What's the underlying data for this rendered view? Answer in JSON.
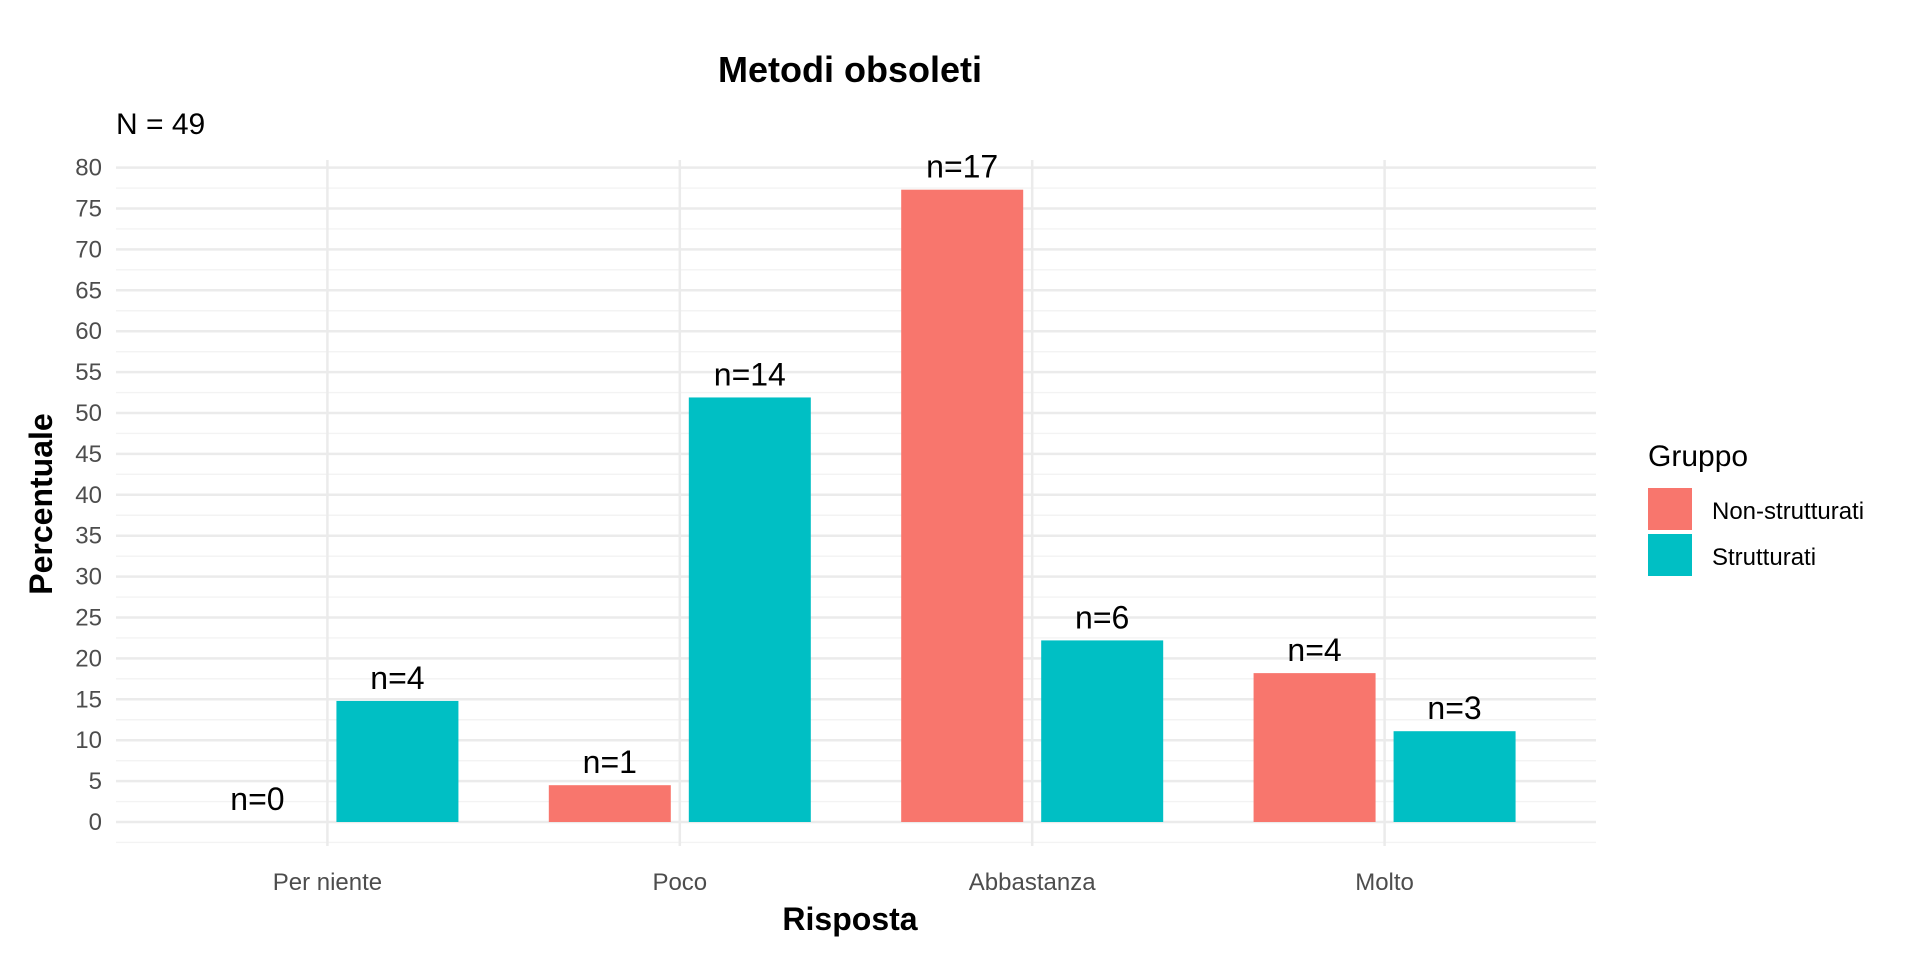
{
  "chart_data": {
    "type": "bar",
    "title": "Metodi obsoleti",
    "subtitle": "N = 49",
    "xlabel": "Risposta",
    "ylabel": "Percentuale",
    "categories": [
      "Per niente",
      "Poco",
      "Abbastanza",
      "Molto"
    ],
    "ylim": [
      0,
      80
    ],
    "yticks": [
      0,
      5,
      10,
      15,
      20,
      25,
      30,
      35,
      40,
      45,
      50,
      55,
      60,
      65,
      70,
      75,
      80
    ],
    "ytick_labels": [
      "0",
      "5",
      "10",
      "15",
      "20",
      "25",
      "30",
      "35",
      "40",
      "45",
      "50",
      "55",
      "60",
      "65",
      "70",
      "75",
      "80"
    ],
    "grid": true,
    "legend": {
      "title": "Gruppo",
      "position": "right"
    },
    "series": [
      {
        "name": "Non-strutturati",
        "color": "#F8766D",
        "values": [
          0,
          4.5,
          77.3,
          18.2
        ],
        "labels": [
          "n=0",
          "n=1",
          "n=17",
          "n=4"
        ]
      },
      {
        "name": "Strutturati",
        "color": "#00BFC4",
        "values": [
          14.8,
          51.9,
          22.2,
          11.1
        ],
        "labels": [
          "n=4",
          "n=14",
          "n=6",
          "n=3"
        ]
      }
    ]
  }
}
